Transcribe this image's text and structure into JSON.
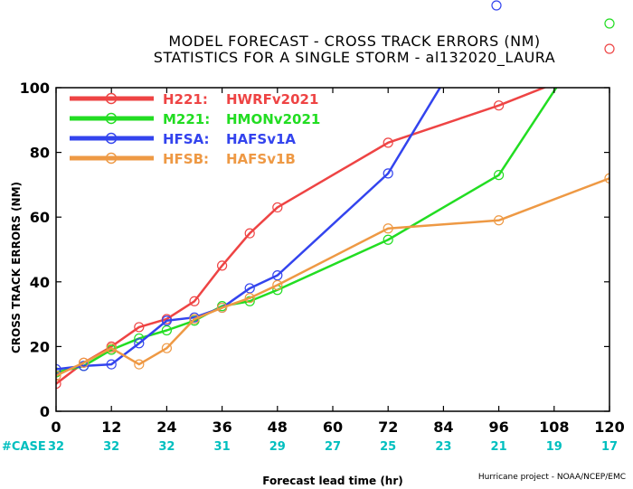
{
  "title_lines": [
    "MODEL FORECAST - CROSS TRACK ERRORS (NM)",
    "STATISTICS FOR A SINGLE STORM - al132020_LAURA"
  ],
  "footer": "Hurricane project - NOAA/NCEP/EMC",
  "case_label": "#CASE",
  "case_counts": [
    "32",
    "32",
    "32",
    "31",
    "29",
    "27",
    "25",
    "23",
    "21",
    "19",
    "17"
  ],
  "chart_data": {
    "type": "line",
    "title": "MODEL FORECAST - CROSS TRACK ERRORS (NM)",
    "subtitle": "STATISTICS FOR A SINGLE STORM - al132020_LAURA",
    "xlabel": "Forecast lead time (hr)",
    "ylabel": "CROSS TRACK ERRORS (NM)",
    "xlim": [
      0,
      120
    ],
    "ylim": [
      0,
      100
    ],
    "xticks": [
      0,
      12,
      24,
      36,
      48,
      60,
      72,
      84,
      96,
      108,
      120
    ],
    "yticks": [
      0,
      20,
      40,
      60,
      80,
      100
    ],
    "legend_position": "top-left",
    "grid": false,
    "series": [
      {
        "name": "H221: HWRFv2021",
        "code": "H221:",
        "model": "HWRFv2021",
        "color": "#ee4444",
        "x": [
          0,
          6,
          12,
          18,
          24,
          30,
          36,
          42,
          48,
          72,
          96,
          120
        ],
        "y": [
          8.5,
          15,
          20,
          26,
          28.5,
          34,
          45,
          55,
          63,
          83,
          94.5,
          108
        ]
      },
      {
        "name": "M221: HMONv2021",
        "code": "M221:",
        "model": "HMONv2021",
        "color": "#22dd22",
        "x": [
          0,
          6,
          12,
          18,
          24,
          30,
          36,
          42,
          48,
          72,
          96,
          120
        ],
        "y": [
          12,
          14,
          19,
          22.5,
          25,
          28,
          32.5,
          34,
          37.5,
          53,
          73,
          125
        ]
      },
      {
        "name": "HFSA: HAFSv1A",
        "code": "HFSA:",
        "model": "HAFSv1A",
        "color": "#3344ee",
        "x": [
          0,
          6,
          12,
          18,
          24,
          30,
          36,
          42,
          48,
          72,
          96
        ],
        "y": [
          13,
          14,
          14.5,
          21,
          28,
          29,
          32,
          38,
          42,
          73.5,
          130
        ]
      },
      {
        "name": "HFSB: HAFSv1B",
        "code": "HFSB:",
        "model": "HAFSv1B",
        "color": "#ee9944",
        "x": [
          0,
          6,
          12,
          18,
          24,
          30,
          36,
          42,
          48,
          72,
          96,
          120
        ],
        "y": [
          11,
          15,
          19.5,
          14.5,
          19.5,
          28.5,
          32,
          35,
          39,
          56.5,
          59,
          72
        ]
      }
    ]
  }
}
